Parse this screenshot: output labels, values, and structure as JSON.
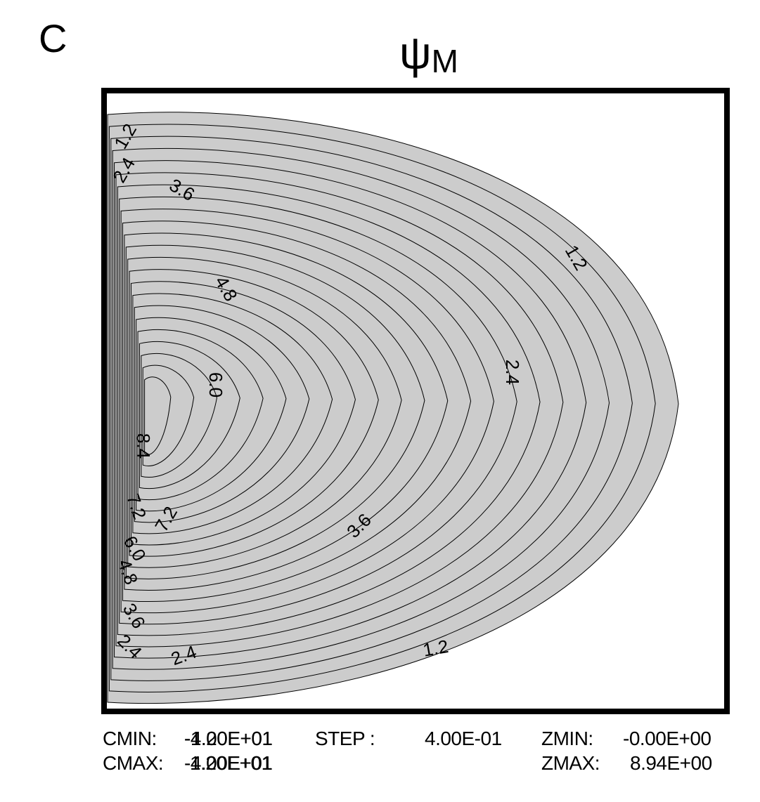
{
  "panel_label": "C",
  "title": {
    "symbol": "ψ",
    "subscript": "M"
  },
  "chart_data": {
    "type": "contour",
    "colors": {
      "fill": "#cccccc",
      "line": "#000000",
      "frame": "#000000"
    },
    "contour_labels": [
      {
        "text": "1.2"
      },
      {
        "text": "2.4"
      },
      {
        "text": "3.6"
      },
      {
        "text": "4.8"
      },
      {
        "text": "1.2"
      },
      {
        "text": "2.4"
      },
      {
        "text": "6.0"
      },
      {
        "text": "8.4"
      },
      {
        "text": "7.2"
      },
      {
        "text": "7.2"
      },
      {
        "text": "6.0"
      },
      {
        "text": "4.8"
      },
      {
        "text": "3.6"
      },
      {
        "text": "3.6"
      },
      {
        "text": "2.4"
      },
      {
        "text": "2.4"
      },
      {
        "text": "1.2"
      }
    ],
    "footer": {
      "cmin_label": "CMIN:",
      "cmin_value": "-1.20E+01",
      "cmin_overprint": "-4.00E+01",
      "step_label": "STEP :",
      "step_value": "4.00E-01",
      "zmin_label": "ZMIN:",
      "zmin_value": "-0.00E+00",
      "cmax_label": "CMAX:",
      "cmax_value": "1.20E+01",
      "cmax_overprint": "-4.00E+01",
      "zmax_label": "ZMAX:",
      "zmax_value": "8.94E+00"
    }
  }
}
